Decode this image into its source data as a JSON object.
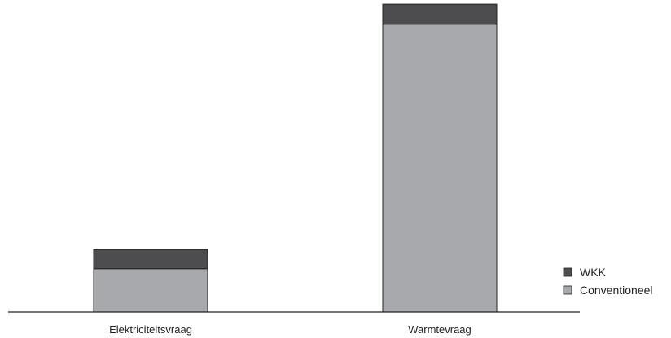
{
  "chart_data": {
    "type": "bar",
    "stacked": true,
    "categories": [
      "Elektriciteitsvraag",
      "Warmtevraag"
    ],
    "series": [
      {
        "name": "Conventioneel",
        "values": [
          52,
          346
        ],
        "color": "#a7a9ac"
      },
      {
        "name": "WKK",
        "values": [
          23,
          24
        ],
        "color": "#4d4d4f"
      }
    ],
    "ylim": [
      0,
      375
    ],
    "legend_position": "bottom-right",
    "grid": false,
    "axes_visible": false
  }
}
